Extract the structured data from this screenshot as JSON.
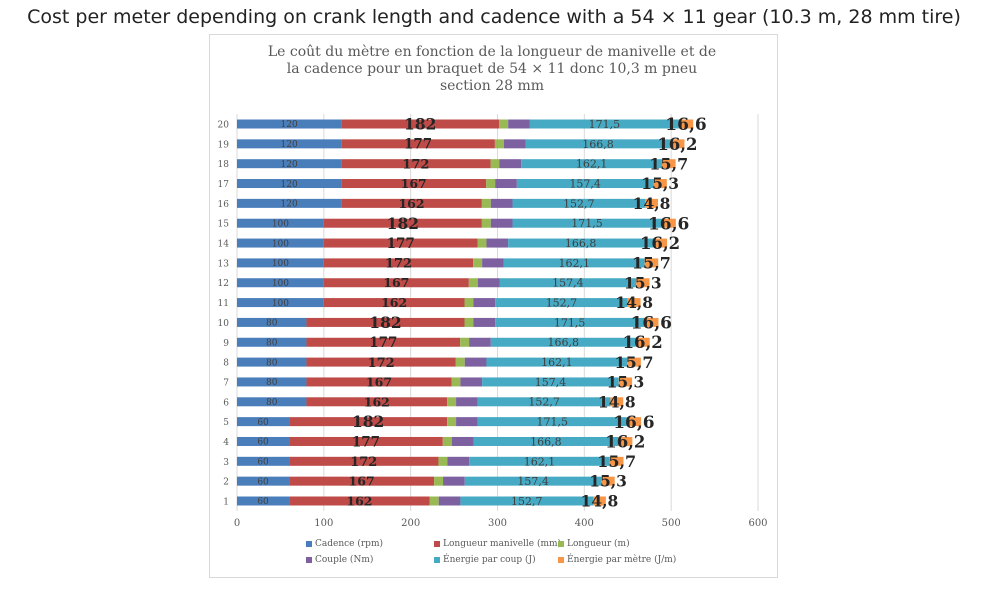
{
  "page_title": "Cost per meter depending on crank length and cadence with a 54 × 11 gear (10.3 m, 28 mm tire)",
  "chart_data": {
    "type": "bar",
    "orientation": "horizontal",
    "stacked": true,
    "title": "Le coût du mètre en fonction de la longueur de manivelle et de la cadence pour un braquet de 54 × 11 donc 10,3 m pneu section 28 mm",
    "categories": [
      "1",
      "2",
      "3",
      "4",
      "5",
      "6",
      "7",
      "8",
      "9",
      "10",
      "11",
      "12",
      "13",
      "14",
      "15",
      "16",
      "17",
      "18",
      "19",
      "20"
    ],
    "series": [
      {
        "name": "Cadence (rpm)",
        "color": "#4a7ebb",
        "values": [
          60,
          60,
          60,
          60,
          60,
          80,
          80,
          80,
          80,
          80,
          100,
          100,
          100,
          100,
          100,
          120,
          120,
          120,
          120,
          120
        ],
        "labels": [
          "60",
          "60",
          "60",
          "60",
          "60",
          "80",
          "80",
          "80",
          "80",
          "80",
          "100",
          "100",
          "100",
          "100",
          "100",
          "120",
          "120",
          "120",
          "120",
          "120"
        ]
      },
      {
        "name": "Longueur manivelle (mm)",
        "color": "#be4b48",
        "values": [
          162,
          167,
          172,
          177,
          182,
          162,
          167,
          172,
          177,
          182,
          162,
          167,
          172,
          177,
          182,
          162,
          167,
          172,
          177,
          182
        ],
        "labels": [
          "162",
          "167",
          "172",
          "177",
          "182",
          "162",
          "167",
          "172",
          "177",
          "182",
          "162",
          "167",
          "172",
          "177",
          "182",
          "162",
          "167",
          "172",
          "177",
          "182"
        ]
      },
      {
        "name": "Longueur (m)",
        "color": "#98b954",
        "values": [
          10.3,
          10.3,
          10.3,
          10.3,
          10.3,
          10.3,
          10.3,
          10.3,
          10.3,
          10.3,
          10.3,
          10.3,
          10.3,
          10.3,
          10.3,
          10.3,
          10.3,
          10.3,
          10.3,
          10.3
        ]
      },
      {
        "name": "Couple (Nm)",
        "color": "#7d60a0",
        "values": [
          25,
          25,
          25,
          25,
          25,
          25,
          25,
          25,
          25,
          25,
          25,
          25,
          25,
          25,
          25,
          25,
          25,
          25,
          25,
          25
        ]
      },
      {
        "name": "Énergie par coup (J)",
        "color": "#46aac5",
        "values": [
          152.7,
          157.4,
          162.1,
          166.8,
          171.5,
          152.7,
          157.4,
          162.1,
          166.8,
          171.5,
          152.7,
          157.4,
          162.1,
          166.8,
          171.5,
          152.7,
          157.4,
          162.1,
          166.8,
          171.5
        ],
        "labels": [
          "152,7",
          "157,4",
          "162,1",
          "166,8",
          "171,5",
          "152,7",
          "157,4",
          "162,1",
          "166,8",
          "171,5",
          "152,7",
          "157,4",
          "162,1",
          "166,8",
          "171,5",
          "152,7",
          "157,4",
          "162,1",
          "166,8",
          "171,5"
        ]
      },
      {
        "name": "Énergie par mètre (J/m)",
        "color": "#f79646",
        "values": [
          14.8,
          15.3,
          15.7,
          16.2,
          16.6,
          14.8,
          15.3,
          15.7,
          16.2,
          16.6,
          14.8,
          15.3,
          15.7,
          16.2,
          16.6,
          14.8,
          15.3,
          15.7,
          16.2,
          16.6
        ],
        "labels": [
          "14,8",
          "15,3",
          "15,7",
          "16,2",
          "16,6",
          "14,8",
          "15,3",
          "15,7",
          "16,2",
          "16,6",
          "14,8",
          "15,3",
          "15,7",
          "16,2",
          "16,6",
          "14,8",
          "15,3",
          "15,7",
          "16,2",
          "16,6"
        ]
      }
    ],
    "xlim": [
      0,
      600
    ],
    "xticks": [
      "0",
      "100",
      "200",
      "300",
      "400",
      "500",
      "600"
    ],
    "grid": true,
    "legend_position": "bottom"
  }
}
